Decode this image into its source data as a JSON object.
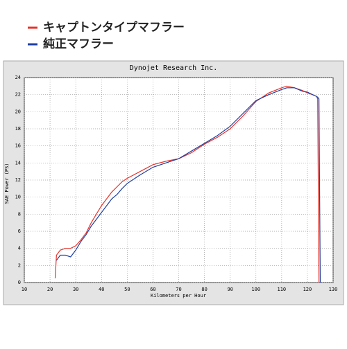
{
  "chart_data": {
    "type": "line",
    "title": "Dynojet Research Inc.",
    "x_label": "Kilometers per Hour",
    "y_label": "SAE Power (PS)",
    "x": [
      22,
      22.5,
      24,
      26,
      28,
      30,
      32,
      34,
      36,
      38,
      40,
      42,
      44,
      46,
      48,
      50,
      55,
      60,
      65,
      70,
      75,
      80,
      85,
      90,
      95,
      100,
      105,
      110,
      112,
      115,
      118,
      120,
      122,
      123.5,
      124,
      124.5,
      125
    ],
    "series": [
      {
        "name": "キャプトンタイプマフラー",
        "color": "#e8332a",
        "values": [
          0.5,
          3.2,
          3.8,
          4.0,
          4.0,
          4.3,
          5.0,
          5.8,
          7.0,
          8.0,
          9.0,
          9.8,
          10.6,
          11.2,
          11.8,
          12.2,
          13.0,
          13.8,
          14.2,
          14.5,
          15.2,
          16.2,
          17.0,
          18.0,
          19.5,
          21.2,
          22.2,
          22.8,
          23.0,
          22.8,
          22.5,
          22.2,
          22.0,
          21.8,
          21.5,
          0,
          null
        ]
      },
      {
        "name": "純正マフラー",
        "color": "#1f3fa0",
        "values": [
          null,
          2.6,
          3.2,
          3.2,
          3.0,
          3.8,
          4.8,
          5.6,
          6.6,
          7.4,
          8.2,
          9.0,
          9.8,
          10.3,
          11.0,
          11.6,
          12.6,
          13.5,
          14.0,
          14.5,
          15.4,
          16.3,
          17.2,
          18.3,
          19.8,
          21.3,
          22.0,
          22.6,
          22.8,
          22.8,
          22.4,
          22.3,
          22.0,
          21.8,
          21.7,
          21.5,
          0
        ]
      }
    ],
    "xlim": [
      10,
      130
    ],
    "xticks": [
      10,
      20,
      30,
      40,
      50,
      60,
      70,
      80,
      90,
      100,
      110,
      120,
      130
    ],
    "ylim": [
      0,
      24
    ],
    "yticks": [
      0,
      2,
      4,
      6,
      8,
      10,
      12,
      14,
      16,
      18,
      20,
      22,
      24
    ],
    "grid": true
  }
}
